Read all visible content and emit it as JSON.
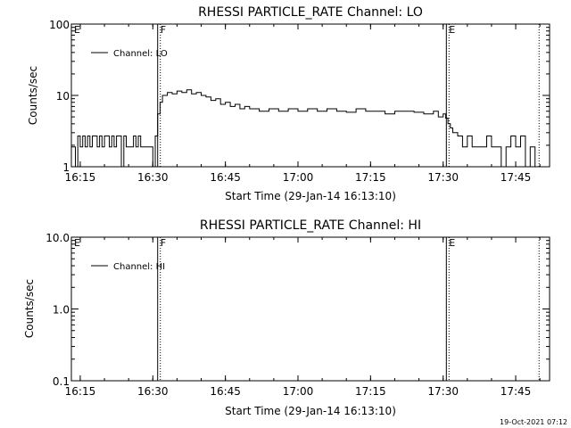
{
  "chart_data": [
    {
      "type": "line",
      "title": "RHESSI PARTICLE_RATE Channel: LO",
      "xlabel": "Start Time (29-Jan-14 16:13:10)",
      "ylabel": "Counts/sec",
      "y_scale": "log",
      "xlim": [
        "16:13:10",
        "17:52:00"
      ],
      "ylim": [
        1,
        100
      ],
      "x_ticks": [
        "16:15",
        "16:30",
        "16:45",
        "17:00",
        "17:15",
        "17:30",
        "17:45"
      ],
      "y_ticks": [
        "1",
        "10",
        "100"
      ],
      "legend": "Channel: LO",
      "legend_position": "top-left",
      "markers": [
        {
          "label": "E",
          "time": "16:13:10",
          "style": "solid"
        },
        {
          "label": "F",
          "time": "16:31:00",
          "style": "solid"
        },
        {
          "label": "E",
          "time": "17:30:40",
          "style": "solid"
        },
        {
          "label": "",
          "time": "17:49:50",
          "style": "dotted"
        }
      ],
      "series": [
        {
          "name": "Channel: LO",
          "x": [
            "16:13:10",
            "16:14:00",
            "16:14:30",
            "16:15:00",
            "16:15:30",
            "16:16:00",
            "16:16:30",
            "16:17:00",
            "16:17:30",
            "16:18:00",
            "16:18:30",
            "16:19:00",
            "16:19:30",
            "16:20:00",
            "16:20:30",
            "16:21:00",
            "16:21:30",
            "16:22:00",
            "16:22:30",
            "16:23:00",
            "16:23:30",
            "16:24:00",
            "16:24:30",
            "16:25:00",
            "16:25:30",
            "16:26:00",
            "16:26:30",
            "16:27:00",
            "16:27:30",
            "16:28:00",
            "16:28:30",
            "16:29:00",
            "16:29:30",
            "16:30:00",
            "16:30:30",
            "16:31:00",
            "16:31:30",
            "16:32:00",
            "16:33:00",
            "16:34:00",
            "16:35:00",
            "16:36:00",
            "16:37:00",
            "16:38:00",
            "16:39:00",
            "16:40:00",
            "16:41:00",
            "16:42:00",
            "16:43:00",
            "16:44:00",
            "16:45:00",
            "16:46:00",
            "16:47:00",
            "16:48:00",
            "16:49:00",
            "16:50:00",
            "16:52:00",
            "16:54:00",
            "16:56:00",
            "16:58:00",
            "17:00:00",
            "17:02:00",
            "17:04:00",
            "17:06:00",
            "17:08:00",
            "17:10:00",
            "17:12:00",
            "17:14:00",
            "17:16:00",
            "17:18:00",
            "17:20:00",
            "17:22:00",
            "17:24:00",
            "17:26:00",
            "17:27:00",
            "17:28:00",
            "17:29:00",
            "17:30:00",
            "17:30:30",
            "17:31:00",
            "17:31:30",
            "17:32:00",
            "17:33:00",
            "17:34:00",
            "17:35:00",
            "17:36:00",
            "17:37:00",
            "17:38:00",
            "17:39:00",
            "17:40:00",
            "17:41:00",
            "17:42:00",
            "17:43:00",
            "17:44:00",
            "17:45:00",
            "17:46:00",
            "17:47:00",
            "17:48:00",
            "17:49:00"
          ],
          "y": [
            1.9,
            1.0,
            2.7,
            1.9,
            2.7,
            1.9,
            2.7,
            1.9,
            2.7,
            2.7,
            1.9,
            2.7,
            1.9,
            2.7,
            2.7,
            1.9,
            2.7,
            1.9,
            2.7,
            2.7,
            1.0,
            2.7,
            1.9,
            1.9,
            1.9,
            2.7,
            1.9,
            2.7,
            1.9,
            1.9,
            1.9,
            1.9,
            1.9,
            1.0,
            2.7,
            5.5,
            8.0,
            10.0,
            11.0,
            10.5,
            11.5,
            11.0,
            12.0,
            10.5,
            11.0,
            10.0,
            9.5,
            8.5,
            9.0,
            7.5,
            8.0,
            7.0,
            7.5,
            6.5,
            7.0,
            6.5,
            6.0,
            6.5,
            6.0,
            6.5,
            6.0,
            6.5,
            6.0,
            6.5,
            6.0,
            5.8,
            6.5,
            6.0,
            6.0,
            5.5,
            6.0,
            6.0,
            5.8,
            5.5,
            5.5,
            6.0,
            5.0,
            5.5,
            4.8,
            4.0,
            3.5,
            3.0,
            2.7,
            1.9,
            2.7,
            1.9,
            1.9,
            1.9,
            2.7,
            1.9,
            1.9,
            1.0,
            1.9,
            2.7,
            1.9,
            2.7,
            1.0,
            1.9,
            1.0
          ]
        }
      ]
    },
    {
      "type": "line",
      "title": "RHESSI PARTICLE_RATE Channel: HI",
      "xlabel": "Start Time (29-Jan-14 16:13:10)",
      "ylabel": "Counts/sec",
      "y_scale": "log",
      "xlim": [
        "16:13:10",
        "17:52:00"
      ],
      "ylim": [
        0.1,
        10.0
      ],
      "x_ticks": [
        "16:15",
        "16:30",
        "16:45",
        "17:00",
        "17:15",
        "17:30",
        "17:45"
      ],
      "y_ticks": [
        "0.1",
        "1.0",
        "10.0"
      ],
      "legend": "Channel: HI",
      "legend_position": "top-left",
      "markers": [
        {
          "label": "E",
          "time": "16:13:10",
          "style": "solid"
        },
        {
          "label": "F",
          "time": "16:31:00",
          "style": "solid"
        },
        {
          "label": "E",
          "time": "17:30:40",
          "style": "solid"
        },
        {
          "label": "",
          "time": "17:49:50",
          "style": "dotted"
        }
      ],
      "series": [
        {
          "name": "Channel: HI",
          "x": [],
          "y": []
        }
      ]
    }
  ],
  "timestamp": "19-Oct-2021 07:12"
}
